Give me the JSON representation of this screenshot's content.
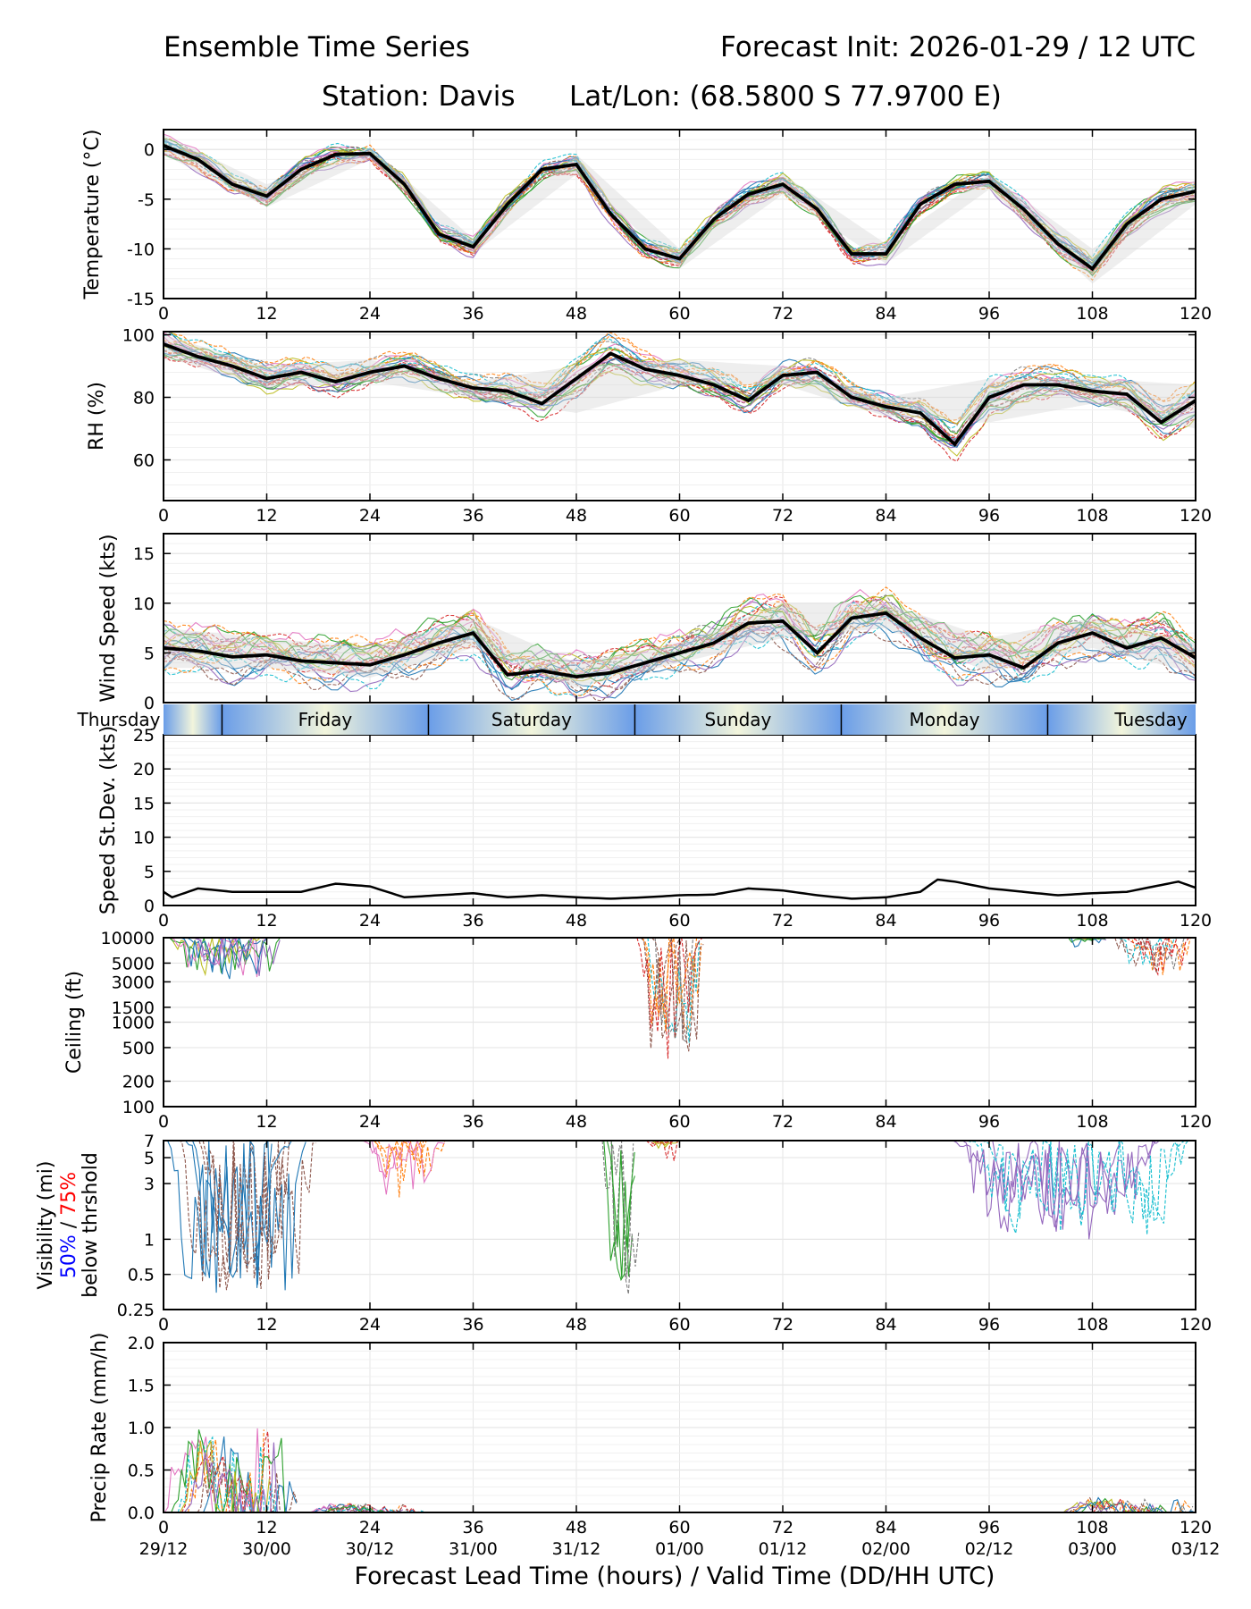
{
  "header": {
    "title_left": "Ensemble Time Series",
    "title_right": "Forecast Init: 2026-01-29 / 12 UTC",
    "station": "Station: Davis",
    "latlon": "Lat/Lon: (68.5800 S 77.9700 E)"
  },
  "chart_data": [
    {
      "type": "line",
      "id": "temperature",
      "ylabel": "Temperature (°C)",
      "ylim": [
        -15,
        2
      ],
      "yticks": [
        0,
        -5,
        -10,
        -15
      ],
      "ytick_labels": [
        "0",
        "-5",
        "-10",
        "-15"
      ],
      "xlim": [
        0,
        120
      ],
      "xticks": [
        0,
        12,
        24,
        36,
        48,
        60,
        72,
        84,
        96,
        108,
        120
      ],
      "xtick_labels": [
        "0",
        "12",
        "24",
        "36",
        "48",
        "60",
        "72",
        "84",
        "96",
        "108",
        "120"
      ],
      "ensemble_mean": {
        "x": [
          0,
          4,
          8,
          12,
          16,
          20,
          24,
          28,
          32,
          36,
          40,
          44,
          48,
          52,
          56,
          60,
          64,
          68,
          72,
          76,
          80,
          84,
          88,
          92,
          96,
          100,
          104,
          108,
          112,
          116,
          120
        ],
        "y": [
          0.4,
          -1.0,
          -3.5,
          -4.7,
          -2.0,
          -0.5,
          -0.4,
          -3.5,
          -8.5,
          -9.8,
          -5.5,
          -2.0,
          -1.5,
          -6.5,
          -10.0,
          -11.0,
          -7.0,
          -4.5,
          -3.5,
          -6.0,
          -10.5,
          -10.5,
          -5.5,
          -3.5,
          -3.2,
          -6.0,
          -9.5,
          -12.0,
          -7.5,
          -5.0,
          -4.2
        ]
      },
      "spread_band": {
        "x": [
          0,
          12,
          24,
          36,
          48,
          60,
          72,
          84,
          96,
          108,
          120
        ],
        "lower": [
          -0.5,
          -5.8,
          -1.0,
          -10.5,
          -2.5,
          -12.0,
          -4.5,
          -11.5,
          -4.0,
          -13.5,
          -5.5
        ],
        "upper": [
          1.5,
          -3.5,
          0.2,
          -9.0,
          -0.5,
          -10.0,
          -2.5,
          -9.5,
          -2.5,
          -10.0,
          -3.0
        ]
      }
    },
    {
      "type": "line",
      "id": "rh",
      "ylabel": "RH (%)",
      "ylim": [
        47,
        101
      ],
      "yticks": [
        100,
        80,
        60
      ],
      "ytick_labels": [
        "100",
        "80",
        "60"
      ],
      "xlim": [
        0,
        120
      ],
      "xticks": [
        0,
        12,
        24,
        36,
        48,
        60,
        72,
        84,
        96,
        108,
        120
      ],
      "xtick_labels": [
        "0",
        "12",
        "24",
        "36",
        "48",
        "60",
        "72",
        "84",
        "96",
        "108",
        "120"
      ],
      "ensemble_mean": {
        "x": [
          0,
          4,
          8,
          12,
          16,
          20,
          24,
          28,
          32,
          36,
          40,
          44,
          48,
          52,
          56,
          60,
          64,
          68,
          72,
          76,
          80,
          84,
          88,
          92,
          96,
          100,
          104,
          108,
          112,
          116,
          120
        ],
        "y": [
          97,
          93,
          90,
          86,
          88,
          85,
          88,
          90,
          86,
          83,
          82,
          78,
          86,
          94,
          89,
          87,
          84,
          79,
          87,
          88,
          80,
          77,
          75,
          65,
          80,
          84,
          84,
          82,
          81,
          72,
          79
        ]
      },
      "spread_band": {
        "x": [
          0,
          12,
          24,
          36,
          48,
          60,
          72,
          84,
          96,
          108,
          120
        ],
        "lower": [
          93,
          83,
          85,
          80,
          75,
          84,
          84,
          74,
          72,
          78,
          70
        ],
        "upper": [
          100,
          90,
          92,
          85,
          90,
          92,
          90,
          80,
          86,
          86,
          84
        ]
      }
    },
    {
      "type": "line",
      "id": "windspeed",
      "ylabel": "Wind Speed (kts)",
      "ylim": [
        0,
        17
      ],
      "yticks": [
        15,
        10,
        5,
        0
      ],
      "ytick_labels": [
        "15",
        "10",
        "5",
        "0"
      ],
      "xlim": [
        0,
        120
      ],
      "ensemble_mean": {
        "x": [
          0,
          4,
          8,
          12,
          16,
          20,
          24,
          28,
          32,
          36,
          40,
          44,
          48,
          52,
          56,
          60,
          64,
          68,
          72,
          76,
          80,
          84,
          88,
          92,
          96,
          100,
          104,
          108,
          112,
          116,
          120
        ],
        "y": [
          5.5,
          5.2,
          4.6,
          4.8,
          4.2,
          4.0,
          3.8,
          4.8,
          6.0,
          7.0,
          2.8,
          3.2,
          2.6,
          3.0,
          4.0,
          5.0,
          6.0,
          8.0,
          8.2,
          5.0,
          8.5,
          9.0,
          6.5,
          4.5,
          4.8,
          3.5,
          6.0,
          7.0,
          5.5,
          6.5,
          4.5
        ]
      },
      "spread_band": {
        "x": [
          0,
          12,
          24,
          36,
          48,
          60,
          72,
          84,
          96,
          108,
          120
        ],
        "lower": [
          3.5,
          3.5,
          2.5,
          5.5,
          1.5,
          4.0,
          6.5,
          7.5,
          3.0,
          5.5,
          3.0
        ],
        "upper": [
          7.5,
          6.5,
          5.5,
          8.5,
          4.0,
          6.0,
          10.0,
          10.0,
          6.5,
          8.5,
          6.0
        ]
      }
    },
    {
      "type": "line",
      "id": "stdev",
      "ylabel": "Speed St.Dev. (kts)",
      "ylim": [
        0,
        25
      ],
      "yticks": [
        25,
        20,
        15,
        10,
        5,
        0
      ],
      "ytick_labels": [
        "25",
        "20",
        "15",
        "10",
        "5",
        "0"
      ],
      "xlim": [
        0,
        120
      ],
      "xticks": [
        0,
        12,
        24,
        36,
        48,
        60,
        72,
        84,
        96,
        108,
        120
      ],
      "xtick_labels": [
        "0",
        "12",
        "24",
        "36",
        "48",
        "60",
        "72",
        "84",
        "96",
        "108",
        "120"
      ],
      "series": [
        {
          "name": "speed stdev",
          "x": [
            0,
            1,
            4,
            8,
            12,
            16,
            20,
            24,
            28,
            32,
            36,
            40,
            44,
            48,
            52,
            56,
            60,
            64,
            68,
            72,
            76,
            80,
            84,
            88,
            90,
            92,
            96,
            100,
            104,
            108,
            112,
            116,
            118,
            120
          ],
          "y": [
            2.0,
            1.2,
            2.5,
            2.0,
            2.0,
            2.0,
            3.2,
            2.8,
            1.2,
            1.5,
            1.8,
            1.2,
            1.5,
            1.2,
            1.0,
            1.2,
            1.5,
            1.6,
            2.5,
            2.2,
            1.5,
            1.0,
            1.2,
            2.0,
            3.8,
            3.5,
            2.5,
            2.0,
            1.5,
            1.8,
            2.0,
            3.0,
            3.5,
            2.6
          ]
        }
      ]
    },
    {
      "type": "line",
      "id": "ceiling",
      "yscale": "log",
      "ylabel": "Ceiling (ft)",
      "ylim": [
        100,
        10000
      ],
      "yticks": [
        10000,
        5000,
        3000,
        1500,
        1000,
        500,
        200,
        100
      ],
      "ytick_labels": [
        "10000",
        "5000",
        "3000",
        "1500",
        "1000",
        "500",
        "200",
        "100"
      ],
      "xlim": [
        0,
        120
      ],
      "xticks": [
        0,
        12,
        24,
        36,
        48,
        60,
        72,
        84,
        96,
        108,
        120
      ],
      "xtick_labels": [
        "0",
        "12",
        "24",
        "36",
        "48",
        "60",
        "72",
        "84",
        "96",
        "108",
        "120"
      ]
    },
    {
      "type": "line",
      "id": "visibility",
      "yscale": "log",
      "ylabel": "Visibility (mi)",
      "threshold_label_50": "50%",
      "threshold_label_sep": " / ",
      "threshold_label_75": "75%",
      "threshold_label_tail": "below thrshold",
      "ylim": [
        0.25,
        7
      ],
      "yticks": [
        7,
        5,
        3,
        1,
        0.5,
        0.25
      ],
      "ytick_labels": [
        "7",
        "5",
        "3",
        "1",
        "0.5",
        "0.25"
      ],
      "xlim": [
        0,
        120
      ],
      "xticks": [
        0,
        12,
        24,
        36,
        48,
        60,
        72,
        84,
        96,
        108,
        120
      ],
      "xtick_labels": [
        "0",
        "12",
        "24",
        "36",
        "48",
        "60",
        "72",
        "84",
        "96",
        "108",
        "120"
      ]
    },
    {
      "type": "line",
      "id": "precip",
      "ylabel": "Precip Rate (mm/h)",
      "ylim": [
        0,
        2.0
      ],
      "yticks": [
        2.0,
        1.5,
        1.0,
        0.5,
        0.0
      ],
      "ytick_labels": [
        "2.0",
        "1.5",
        "1.0",
        "0.5",
        "0.0"
      ],
      "xlim": [
        0,
        120
      ],
      "xticks": [
        0,
        12,
        24,
        36,
        48,
        60,
        72,
        84,
        96,
        108,
        120
      ],
      "xtick_labels": [
        "0",
        "12",
        "24",
        "36",
        "48",
        "60",
        "72",
        "84",
        "96",
        "108",
        "120"
      ],
      "xdate_labels": [
        "29/12",
        "30/00",
        "30/12",
        "31/00",
        "31/12",
        "01/00",
        "01/12",
        "02/00",
        "02/12",
        "03/00",
        "03/12"
      ],
      "xlabel": "Forecast Lead Time (hours) / Valid Time (DD/HH UTC)"
    }
  ],
  "day_band": {
    "days": [
      {
        "name": "Thursday",
        "start": 0,
        "end": 6.8
      },
      {
        "name": "Friday",
        "start": 6.8,
        "end": 30.8
      },
      {
        "name": "Saturday",
        "start": 30.8,
        "end": 54.8
      },
      {
        "name": "Sunday",
        "start": 54.8,
        "end": 78.8
      },
      {
        "name": "Monday",
        "start": 78.8,
        "end": 102.8
      },
      {
        "name": "Tuesday",
        "start": 102.8,
        "end": 120
      }
    ]
  },
  "colors": {
    "mean": "#000000",
    "band": "#d9d9d9",
    "grid": "#e6e6e6",
    "vis50": "#0000ff",
    "vis75": "#ff0000",
    "members": [
      "#1f77b4",
      "#ff7f0e",
      "#2ca02c",
      "#d62728",
      "#9467bd",
      "#8c564b",
      "#e377c2",
      "#7f7f7f",
      "#bcbd22",
      "#17becf"
    ]
  }
}
